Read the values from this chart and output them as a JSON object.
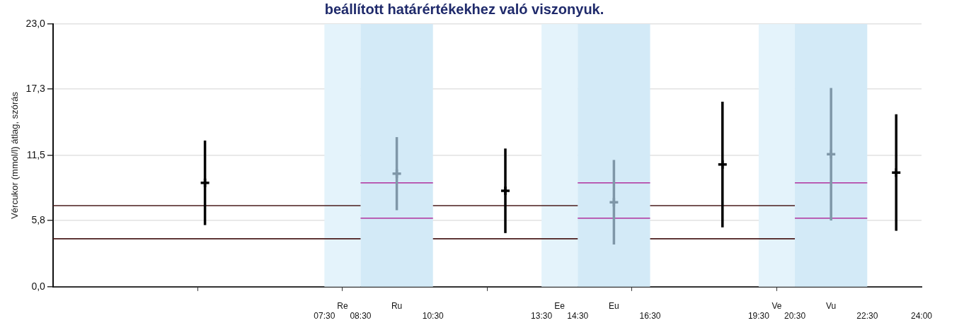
{
  "chart_data": {
    "type": "scatter",
    "title": "beállított határértékekhez való viszonyuk.",
    "ylabel": "Vércukor (mmol/l) átlag, szórás",
    "xlim": [
      0,
      24
    ],
    "xticks": [
      {
        "value": 4,
        "label": null
      },
      {
        "value": 7.5,
        "label": "07:30"
      },
      {
        "value": 8,
        "label": null
      },
      {
        "value": 8.5,
        "label": "08:30"
      },
      {
        "value": 10.5,
        "label": "10:30"
      },
      {
        "value": 12,
        "label": null
      },
      {
        "value": 13.5,
        "label": "13:30"
      },
      {
        "value": 14.5,
        "label": "14:30"
      },
      {
        "value": 16,
        "label": null
      },
      {
        "value": 16.5,
        "label": "16:30"
      },
      {
        "value": 19.5,
        "label": "19:30"
      },
      {
        "value": 20,
        "label": null
      },
      {
        "value": 20.5,
        "label": "20:30"
      },
      {
        "value": 22.5,
        "label": "22:30"
      },
      {
        "value": 24,
        "label": "24:00"
      }
    ],
    "ylim": [
      0,
      23
    ],
    "yticks": [
      {
        "value": 0,
        "label": "0,0"
      },
      {
        "value": 5.8,
        "label": "5,8"
      },
      {
        "value": 11.5,
        "label": "11,5"
      },
      {
        "value": 17.3,
        "label": "17,3"
      },
      {
        "value": 23,
        "label": "23,0"
      }
    ],
    "grid": "y",
    "bands": [
      {
        "axis": "x",
        "from": 7.5,
        "to": 8.5,
        "label": "Re",
        "color": "#e4f3fb"
      },
      {
        "axis": "x",
        "from": 8.5,
        "to": 10.5,
        "label": "Ru",
        "color": "#d3eaf7"
      },
      {
        "axis": "x",
        "from": 13.5,
        "to": 14.5,
        "label": "Ee",
        "color": "#e4f3fb"
      },
      {
        "axis": "x",
        "from": 14.5,
        "to": 16.5,
        "label": "Eu",
        "color": "#d3eaf7"
      },
      {
        "axis": "x",
        "from": 19.5,
        "to": 20.5,
        "label": "Ve",
        "color": "#e4f3fb"
      },
      {
        "axis": "x",
        "from": 20.5,
        "to": 22.5,
        "label": "Vu",
        "color": "#d3eaf7"
      }
    ],
    "series": [
      {
        "type": "line",
        "color": "#4a1c1c",
        "x": [
          0,
          8.5,
          9.5,
          10.5,
          14.5,
          15.5,
          16.5,
          20.5
        ],
        "values": [
          7.1,
          7.1,
          null,
          7.1,
          7.1,
          null,
          7.1,
          7.1
        ]
      },
      {
        "type": "line",
        "color": "#4a1c1c",
        "x": [
          0,
          8.5,
          9.5,
          10.5,
          14.5,
          15.5,
          16.5,
          20.5
        ],
        "values": [
          4.2,
          4.2,
          null,
          4.2,
          4.2,
          null,
          4.2,
          4.2
        ]
      },
      {
        "type": "line",
        "color": "#b0309e",
        "x": [
          8.5,
          10.5,
          12.5,
          14.5,
          16.5,
          18.5,
          20.5,
          22.5
        ],
        "values": [
          9.1,
          9.1,
          null,
          9.1,
          9.1,
          null,
          9.1,
          9.1
        ]
      },
      {
        "type": "line",
        "color": "#b0309e",
        "x": [
          8.5,
          10.5,
          12.5,
          14.5,
          16.5,
          18.5,
          20.5,
          22.5
        ],
        "values": [
          6.0,
          6.0,
          null,
          6.0,
          6.0,
          null,
          6.0,
          6.0
        ]
      },
      {
        "color": "#000000",
        "marker": "cross",
        "x": [
          4.2,
          12.5,
          18.5,
          23.3
        ],
        "values": [
          9.1,
          8.4,
          10.7,
          10.0
        ],
        "errors": [
          3.7,
          3.7,
          5.5,
          5.1
        ]
      },
      {
        "color": "#7f97a8",
        "marker": "cross",
        "x": [
          9.5,
          15.5,
          21.5
        ],
        "values": [
          9.9,
          7.4,
          11.6
        ],
        "errors": [
          3.2,
          3.7,
          5.8
        ]
      }
    ]
  }
}
